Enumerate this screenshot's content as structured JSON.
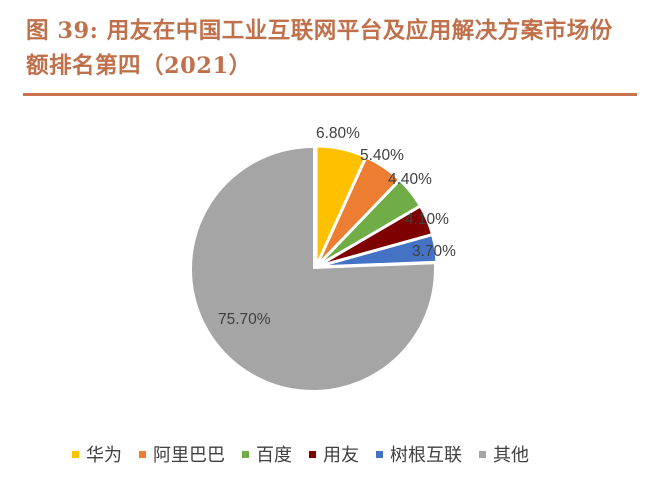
{
  "header": {
    "title_line1": "图 39: 用友在中国工业互联网平台及应用解决方案市场份",
    "title_line2": "额排名第四（2021）",
    "accent_color": "#C8744F"
  },
  "chart_data": {
    "type": "pie",
    "title": "用友在中国工业互联网平台及应用解决方案市场份额排名第四（2021）",
    "figure_number": "图 39",
    "year": "2021",
    "categories": [
      "华为",
      "阿里巴巴",
      "百度",
      "用友",
      "树根互联",
      "其他"
    ],
    "values": [
      6.8,
      5.4,
      4.4,
      4.1,
      3.7,
      75.7
    ],
    "labels": [
      "6.80%",
      "5.40%",
      "4.40%",
      "4.10%",
      "3.70%",
      "75.70%"
    ],
    "colors": [
      "#FFC000",
      "#ED7D31",
      "#70AD47",
      "#7F0000",
      "#4472C4",
      "#A5A5A5"
    ],
    "start_angle": "12 o'clock, clockwise",
    "legend_position": "bottom",
    "unit": "%"
  },
  "legend": {
    "items": [
      {
        "label": "华为",
        "color": "#FFC000"
      },
      {
        "label": "阿里巴巴",
        "color": "#ED7D31"
      },
      {
        "label": "百度",
        "color": "#70AD47"
      },
      {
        "label": "用友",
        "color": "#7F0000"
      },
      {
        "label": "树根互联",
        "color": "#4472C4"
      },
      {
        "label": "其他",
        "color": "#A5A5A5"
      }
    ]
  }
}
